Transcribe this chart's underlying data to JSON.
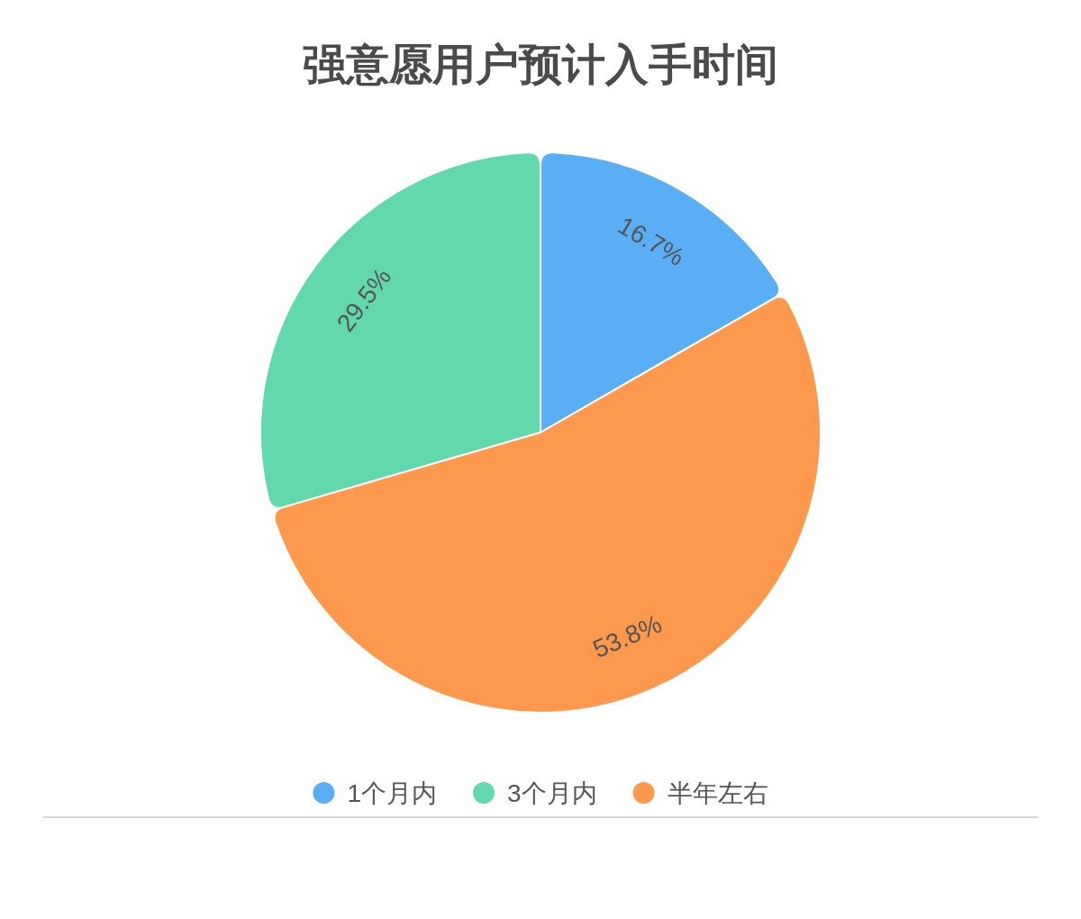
{
  "chart_data": {
    "type": "pie",
    "title": "强意愿用户预计入手时间",
    "categories": [
      "1个月内",
      "3个月内",
      "半年左右"
    ],
    "values": [
      16.7,
      29.5,
      53.8
    ],
    "colors": [
      "#5aaef5",
      "#62d9ad",
      "#fe984c"
    ],
    "value_labels": [
      "16.7%",
      "29.5%",
      "53.8%"
    ],
    "legend": "bottom"
  }
}
